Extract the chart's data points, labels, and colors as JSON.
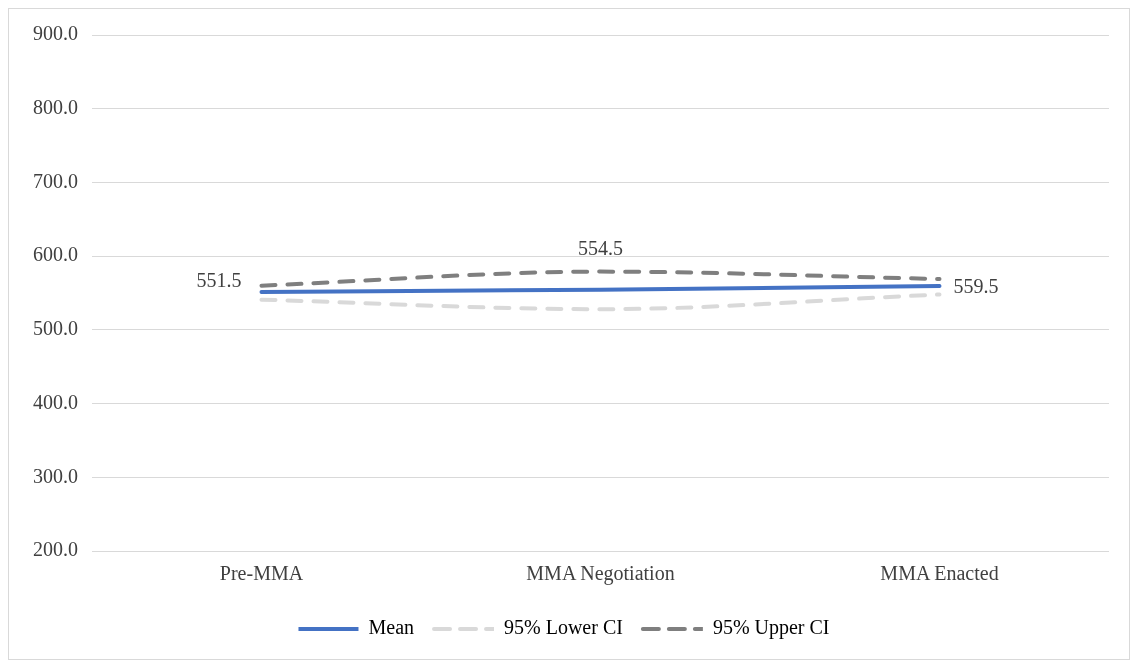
{
  "chart_data": {
    "type": "line",
    "categories": [
      "Pre-MMA",
      "MMA Negotiation",
      "MMA Enacted"
    ],
    "series": [
      {
        "name": "Mean",
        "color": "#4472c4",
        "values": [
          551.5,
          554.5,
          559.5
        ],
        "value_labels": [
          "551.5",
          "554.5",
          "559.5"
        ],
        "line_style": "solid"
      },
      {
        "name": "95% Lower CI",
        "color": "#d9d9d9",
        "values": [
          541,
          528,
          548
        ],
        "line_style": "dashed"
      },
      {
        "name": "95% Upper CI",
        "color": "#7f7f7f",
        "values": [
          560,
          579,
          569
        ],
        "line_style": "dashed"
      }
    ],
    "ylim": [
      200,
      900
    ],
    "yticks": [
      {
        "value": 200,
        "label": "200.0"
      },
      {
        "value": 300,
        "label": "300.0"
      },
      {
        "value": 400,
        "label": "400.0"
      },
      {
        "value": 500,
        "label": "500.0"
      },
      {
        "value": 600,
        "label": "600.0"
      },
      {
        "value": 700,
        "label": "700.0"
      },
      {
        "value": 800,
        "label": "800.0"
      },
      {
        "value": 900,
        "label": "900.0"
      }
    ],
    "grid": "y",
    "legend": "bottom",
    "marker": "none"
  }
}
